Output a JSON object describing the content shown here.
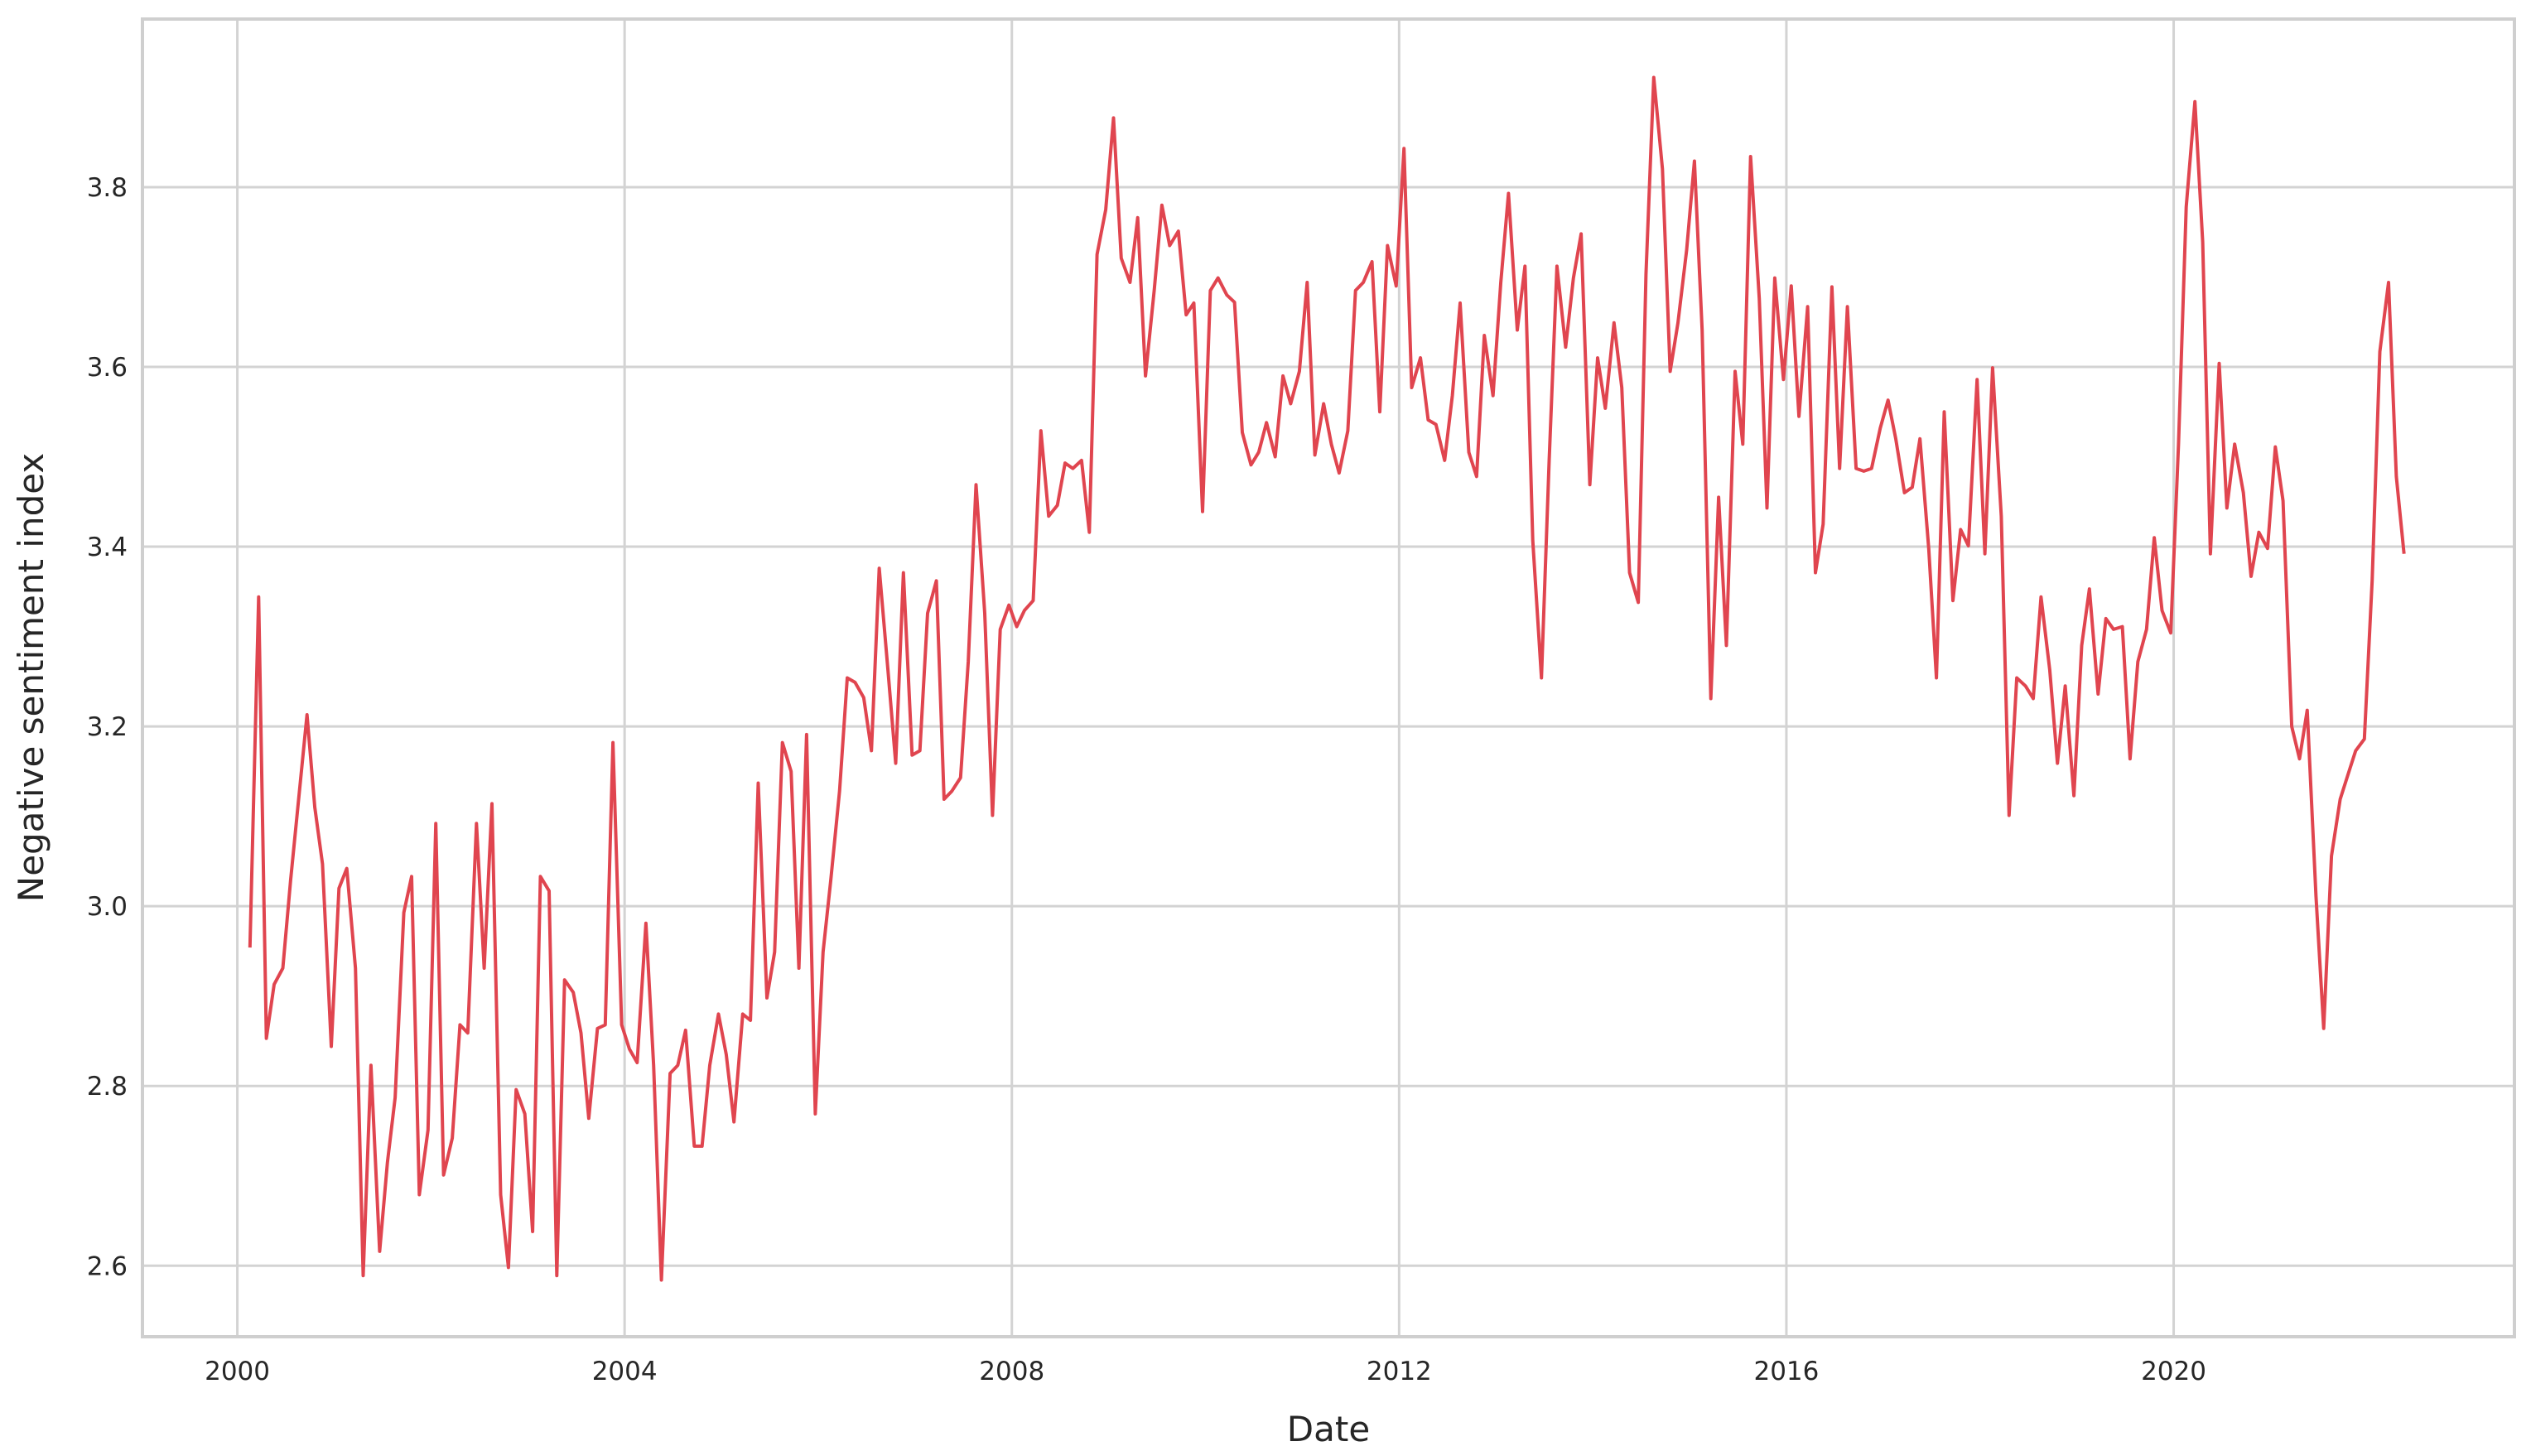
{
  "chart_data": {
    "type": "line",
    "x_label": "Date",
    "y_label": "Negative sentiment index",
    "color": "#e0454f",
    "grid": true,
    "xlim": [
      1999.02,
      2023.52
    ],
    "ylim": [
      2.521,
      3.987
    ],
    "xticks": [
      2000,
      2004,
      2008,
      2012,
      2016,
      2020
    ],
    "yticks": [
      2.6,
      2.8,
      {
        "value": 3,
        "label": "3.0"
      },
      3.2,
      3.4,
      3.6,
      3.8
    ],
    "x": [
      2000.13,
      2000.22,
      2000.3,
      2000.38,
      2000.47,
      2000.55,
      2000.72,
      2000.8,
      2000.88,
      2000.97,
      2001.05,
      2001.13,
      2001.22,
      2001.3,
      2001.38,
      2001.47,
      2001.55,
      2001.63,
      2001.72,
      2001.8,
      2001.88,
      2001.97,
      2002.05,
      2002.13,
      2002.22,
      2002.3,
      2002.38,
      2002.47,
      2002.55,
      2002.63,
      2002.72,
      2002.8,
      2002.88,
      2002.97,
      2003.05,
      2003.13,
      2003.22,
      2003.3,
      2003.38,
      2003.47,
      2003.55,
      2003.63,
      2003.72,
      2003.8,
      2003.88,
      2003.97,
      2004.05,
      2004.13,
      2004.22,
      2004.3,
      2004.38,
      2004.47,
      2004.55,
      2004.63,
      2004.72,
      2004.8,
      2004.88,
      2004.97,
      2005.05,
      2005.13,
      2005.22,
      2005.3,
      2005.38,
      2005.47,
      2005.55,
      2005.63,
      2005.72,
      2005.8,
      2005.88,
      2005.97,
      2006.05,
      2006.13,
      2006.22,
      2006.3,
      2006.38,
      2006.47,
      2006.55,
      2006.63,
      2006.72,
      2006.8,
      2006.88,
      2006.97,
      2007.05,
      2007.13,
      2007.22,
      2007.3,
      2007.38,
      2007.47,
      2007.55,
      2007.63,
      2007.72,
      2007.8,
      2007.88,
      2007.97,
      2008.05,
      2008.13,
      2008.22,
      2008.3,
      2008.38,
      2008.47,
      2008.55,
      2008.63,
      2008.72,
      2008.8,
      2008.88,
      2008.97,
      2009.05,
      2009.13,
      2009.22,
      2009.3,
      2009.38,
      2009.47,
      2009.55,
      2009.63,
      2009.72,
      2009.8,
      2009.88,
      2009.97,
      2010.05,
      2010.13,
      2010.22,
      2010.3,
      2010.38,
      2010.47,
      2010.55,
      2010.63,
      2010.72,
      2010.8,
      2010.88,
      2010.97,
      2011.05,
      2011.13,
      2011.22,
      2011.3,
      2011.38,
      2011.47,
      2011.55,
      2011.63,
      2011.72,
      2011.8,
      2011.88,
      2011.97,
      2012.05,
      2012.13,
      2012.22,
      2012.3,
      2012.38,
      2012.47,
      2012.55,
      2012.63,
      2012.72,
      2012.8,
      2012.88,
      2012.97,
      2013.05,
      2013.13,
      2013.22,
      2013.3,
      2013.38,
      2013.47,
      2013.55,
      2013.63,
      2013.72,
      2013.8,
      2013.88,
      2013.97,
      2014.05,
      2014.13,
      2014.22,
      2014.3,
      2014.38,
      2014.47,
      2014.55,
      2014.63,
      2014.72,
      2014.8,
      2014.88,
      2014.97,
      2015.05,
      2015.13,
      2015.22,
      2015.3,
      2015.38,
      2015.47,
      2015.55,
      2015.63,
      2015.72,
      2015.8,
      2015.88,
      2015.97,
      2016.05,
      2016.13,
      2016.22,
      2016.3,
      2016.38,
      2016.47,
      2016.55,
      2016.63,
      2016.72,
      2016.8,
      2016.88,
      2016.97,
      2017.05,
      2017.13,
      2017.22,
      2017.3,
      2017.38,
      2017.47,
      2017.55,
      2017.63,
      2017.72,
      2017.8,
      2017.88,
      2017.97,
      2018.05,
      2018.13,
      2018.22,
      2018.3,
      2018.38,
      2018.47,
      2018.55,
      2018.63,
      2018.72,
      2018.8,
      2018.88,
      2018.97,
      2019.05,
      2019.13,
      2019.22,
      2019.3,
      2019.38,
      2019.47,
      2019.55,
      2019.63,
      2019.72,
      2019.8,
      2019.88,
      2019.97,
      2020.05,
      2020.13,
      2020.22,
      2020.3,
      2020.38,
      2020.47,
      2020.55,
      2020.63,
      2020.72,
      2020.8,
      2020.88,
      2020.97,
      2021.05,
      2021.13,
      2021.22,
      2021.3,
      2021.38,
      2021.47,
      2021.55,
      2021.63,
      2021.72,
      2021.8,
      2021.88,
      2021.97,
      2022.05,
      2022.13,
      2022.22,
      2022.3,
      2022.38
    ],
    "values": [
      2.954,
      3.344,
      2.853,
      2.913,
      2.931,
      3.029,
      3.213,
      3.11,
      3.047,
      2.844,
      3.02,
      3.042,
      2.931,
      2.589,
      2.823,
      2.616,
      2.715,
      2.787,
      2.993,
      3.033,
      2.679,
      2.751,
      3.092,
      2.701,
      2.742,
      2.868,
      2.859,
      3.092,
      2.931,
      3.114,
      2.679,
      2.598,
      2.796,
      2.769,
      2.638,
      3.033,
      3.017,
      2.589,
      2.918,
      2.904,
      2.859,
      2.764,
      2.864,
      2.868,
      3.182,
      2.868,
      2.841,
      2.826,
      2.981,
      2.823,
      2.584,
      2.814,
      2.823,
      2.862,
      2.733,
      2.733,
      2.823,
      2.88,
      2.835,
      2.76,
      2.88,
      2.873,
      3.137,
      2.898,
      2.949,
      3.182,
      3.15,
      2.931,
      3.191,
      2.769,
      2.949,
      3.029,
      3.128,
      3.254,
      3.249,
      3.232,
      3.173,
      3.376,
      3.263,
      3.159,
      3.371,
      3.168,
      3.173,
      3.326,
      3.362,
      3.119,
      3.128,
      3.143,
      3.272,
      3.469,
      3.326,
      3.101,
      3.308,
      3.335,
      3.311,
      3.329,
      3.34,
      3.529,
      3.434,
      3.446,
      3.493,
      3.487,
      3.496,
      3.416,
      3.725,
      3.775,
      3.877,
      3.721,
      3.694,
      3.766,
      3.59,
      3.685,
      3.78,
      3.735,
      3.751,
      3.658,
      3.671,
      3.439,
      3.685,
      3.699,
      3.68,
      3.672,
      3.527,
      3.491,
      3.505,
      3.538,
      3.5,
      3.59,
      3.559,
      3.595,
      3.694,
      3.502,
      3.559,
      3.514,
      3.482,
      3.529,
      3.685,
      3.694,
      3.717,
      3.55,
      3.735,
      3.69,
      3.843,
      3.577,
      3.61,
      3.541,
      3.536,
      3.496,
      3.568,
      3.671,
      3.505,
      3.478,
      3.635,
      3.568,
      3.694,
      3.793,
      3.641,
      3.712,
      3.407,
      3.254,
      3.496,
      3.712,
      3.622,
      3.699,
      3.748,
      3.469,
      3.61,
      3.554,
      3.649,
      3.577,
      3.371,
      3.338,
      3.703,
      3.922,
      3.82,
      3.595,
      3.649,
      3.73,
      3.829,
      3.641,
      3.231,
      3.455,
      3.29,
      3.595,
      3.514,
      3.834,
      3.676,
      3.443,
      3.699,
      3.586,
      3.69,
      3.545,
      3.667,
      3.371,
      3.425,
      3.689,
      3.487,
      3.667,
      3.487,
      3.484,
      3.487,
      3.532,
      3.563,
      3.52,
      3.46,
      3.466,
      3.52,
      3.398,
      3.254,
      3.55,
      3.34,
      3.419,
      3.401,
      3.586,
      3.392,
      3.599,
      3.434,
      3.101,
      3.254,
      3.245,
      3.231,
      3.344,
      3.263,
      3.159,
      3.245,
      3.123,
      3.29,
      3.353,
      3.236,
      3.32,
      3.308,
      3.311,
      3.164,
      3.272,
      3.308,
      3.41,
      3.329,
      3.304,
      3.514,
      3.778,
      3.895,
      3.739,
      3.392,
      3.604,
      3.443,
      3.514,
      3.46,
      3.367,
      3.416,
      3.398,
      3.511,
      3.451,
      3.2,
      3.164,
      3.218,
      3.011,
      2.864,
      3.056,
      3.119,
      3.146,
      3.173,
      3.186,
      3.362,
      3.617,
      3.694,
      3.478,
      3.392
    ]
  }
}
